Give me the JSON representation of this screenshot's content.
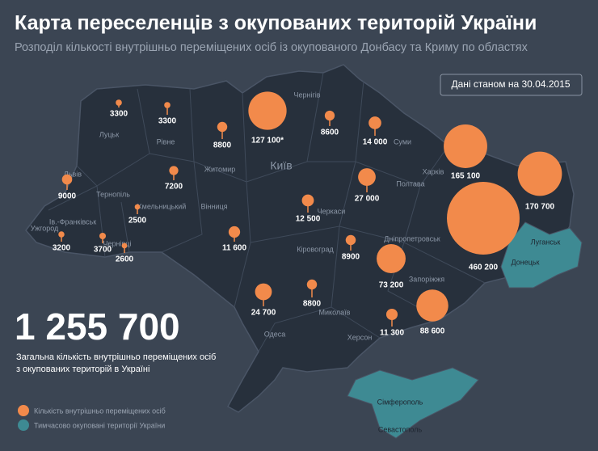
{
  "header": {
    "title": "Карта переселенців з окупованих територій України",
    "subtitle": "Розподіл кількості внутрішньо переміщених осіб із окупованого Донбасу та Криму по областях",
    "date": "Дані станом на 30.04.2015"
  },
  "cities": [
    "Луцьк",
    "Рівне",
    "Житомир",
    "Київ",
    "Чернігів",
    "Суми",
    "Харків",
    "Полтава",
    "Черкаси",
    "Вінниця",
    "Хмельницький",
    "Тернопіль",
    "Львів",
    "Ів.-Франківськ",
    "Ужгород",
    "Чернівці",
    "Кіровоград",
    "Дніпропетровськ",
    "Донецьк",
    "Луганськ",
    "Запоріжжя",
    "Миколаїв",
    "Херсон",
    "Одеса",
    "Сімферополь",
    "Севастополь"
  ],
  "bubbles": [
    {
      "value": 3300,
      "label": "3300"
    },
    {
      "value": 3300,
      "label": "3300"
    },
    {
      "value": 8800,
      "label": "8800"
    },
    {
      "value": 127100,
      "label": "127 100*"
    },
    {
      "value": 8600,
      "label": "8600"
    },
    {
      "value": 14000,
      "label": "14 000"
    },
    {
      "value": 165100,
      "label": "165 100"
    },
    {
      "value": 9000,
      "label": "9000"
    },
    {
      "value": 7200,
      "label": "7200"
    },
    {
      "value": 27000,
      "label": "27 000"
    },
    {
      "value": 170700,
      "label": "170 700"
    },
    {
      "value": 2500,
      "label": "2500"
    },
    {
      "value": 12500,
      "label": "12 500"
    },
    {
      "value": 460200,
      "label": "460 200"
    },
    {
      "value": 3200,
      "label": "3200"
    },
    {
      "value": 3700,
      "label": "3700"
    },
    {
      "value": 2600,
      "label": "2600"
    },
    {
      "value": 11600,
      "label": "11 600"
    },
    {
      "value": 8900,
      "label": "8900"
    },
    {
      "value": 73200,
      "label": "73 200"
    },
    {
      "value": 24700,
      "label": "24 700"
    },
    {
      "value": 8800,
      "label": "8800"
    },
    {
      "value": 11300,
      "label": "11 300"
    },
    {
      "value": 88600,
      "label": "88 600"
    }
  ],
  "total": {
    "label": "1 255 700",
    "caption": [
      "Загальна кількість внутрішньо переміщених осіб",
      "з окупованих територій в Україні"
    ]
  },
  "legend": [
    "Кількість внутрішньо переміщених осіб",
    "Тимчасово окуповані території України"
  ]
}
